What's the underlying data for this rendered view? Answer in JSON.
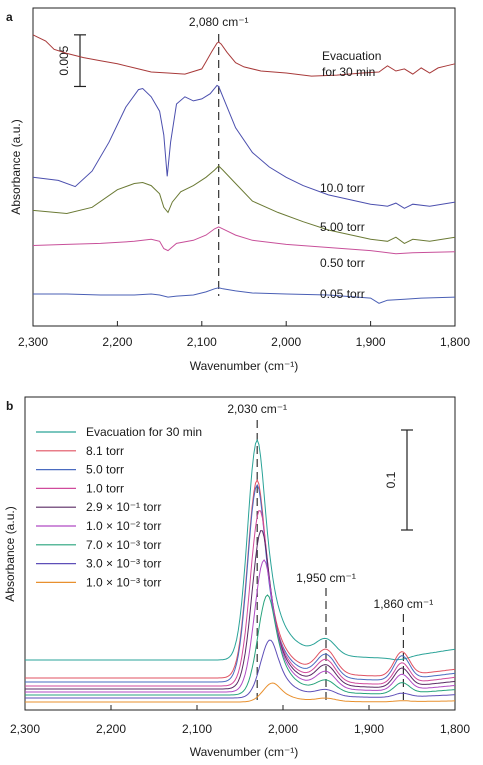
{
  "chart_data": [
    {
      "panel_label": "a",
      "type": "line",
      "xlabel": "Wavenumber (cm⁻¹)",
      "ylabel": "Absorbance (a.u.)",
      "xlim": [
        2300,
        1800
      ],
      "x_ticks": [
        2300,
        2200,
        2100,
        2000,
        1900,
        1800
      ],
      "x_tick_labels": [
        "2,300",
        "2,200",
        "2,100",
        "2,000",
        "1,900",
        "1,800"
      ],
      "ylim": [
        0,
        0.0308
      ],
      "grid": false,
      "legend": "inline labels at right",
      "scale_bar": {
        "label": "0.005",
        "value": 0.005,
        "y_from": 0.0232,
        "y_to": 0.0282
      },
      "annotations": [
        {
          "text": "2,080 cm⁻¹",
          "x": 2080,
          "dashed_line": true
        }
      ],
      "series": [
        {
          "name": "0.05 torr",
          "color": "#4a5fb5",
          "x": [
            2300,
            2260,
            2220,
            2180,
            2160,
            2150,
            2140,
            2130,
            2110,
            2095,
            2085,
            2080,
            2075,
            2060,
            2040,
            2000,
            1950,
            1900,
            1890,
            1880,
            1860,
            1840,
            1800
          ],
          "y": [
            0.0031,
            0.0031,
            0.003,
            0.003,
            0.0031,
            0.003,
            0.0028,
            0.0029,
            0.003,
            0.0033,
            0.0036,
            0.0037,
            0.0036,
            0.0034,
            0.0032,
            0.0031,
            0.003,
            0.0027,
            0.0022,
            0.0025,
            0.0026,
            0.0027,
            0.0028
          ]
        },
        {
          "name": "0.50 torr",
          "color": "#c8509a",
          "x": [
            2300,
            2260,
            2220,
            2180,
            2160,
            2150,
            2145,
            2140,
            2130,
            2110,
            2095,
            2085,
            2080,
            2075,
            2060,
            2040,
            2000,
            1950,
            1900,
            1870,
            1850,
            1800
          ],
          "y": [
            0.0078,
            0.0079,
            0.008,
            0.0082,
            0.0084,
            0.0082,
            0.0075,
            0.0073,
            0.008,
            0.0083,
            0.0088,
            0.0094,
            0.0096,
            0.0094,
            0.0088,
            0.0083,
            0.0079,
            0.0076,
            0.0073,
            0.007,
            0.0071,
            0.0072
          ]
        },
        {
          "name": "5.00 torr",
          "color": "#6b7a35",
          "x": [
            2300,
            2260,
            2230,
            2200,
            2180,
            2170,
            2160,
            2150,
            2145,
            2140,
            2135,
            2125,
            2110,
            2095,
            2085,
            2080,
            2075,
            2060,
            2040,
            2010,
            1980,
            1950,
            1900,
            1880,
            1870,
            1860,
            1850,
            1830,
            1800
          ],
          "y": [
            0.0112,
            0.0109,
            0.0115,
            0.0132,
            0.0138,
            0.0139,
            0.0136,
            0.0128,
            0.0115,
            0.011,
            0.012,
            0.013,
            0.0136,
            0.0144,
            0.0151,
            0.0155,
            0.0151,
            0.0138,
            0.0121,
            0.011,
            0.0101,
            0.0093,
            0.0084,
            0.0082,
            0.0086,
            0.008,
            0.0084,
            0.0082,
            0.0086
          ]
        },
        {
          "name": "10.0 torr",
          "color": "#4b4fae",
          "x": [
            2300,
            2270,
            2250,
            2230,
            2210,
            2190,
            2175,
            2170,
            2160,
            2150,
            2145,
            2141,
            2137,
            2130,
            2120,
            2110,
            2100,
            2090,
            2082,
            2080,
            2075,
            2060,
            2040,
            2020,
            2000,
            1980,
            1950,
            1900,
            1880,
            1870,
            1860,
            1850,
            1830,
            1800
          ],
          "y": [
            0.0144,
            0.0141,
            0.0135,
            0.015,
            0.0178,
            0.0212,
            0.0229,
            0.023,
            0.0222,
            0.0208,
            0.0185,
            0.0145,
            0.0178,
            0.0215,
            0.0222,
            0.0218,
            0.022,
            0.0225,
            0.0233,
            0.0232,
            0.0222,
            0.0192,
            0.0168,
            0.0154,
            0.0144,
            0.0136,
            0.0127,
            0.0118,
            0.0116,
            0.0119,
            0.0114,
            0.0118,
            0.0116,
            0.012
          ]
        },
        {
          "name": "Evacuation for 30 min",
          "color": "#a83a3a",
          "x": [
            2300,
            2295,
            2285,
            2275,
            2260,
            2240,
            2220,
            2200,
            2180,
            2160,
            2140,
            2120,
            2100,
            2095,
            2088,
            2082,
            2080,
            2077,
            2070,
            2060,
            2050,
            2030,
            2000,
            1970,
            1940,
            1910,
            1890,
            1880,
            1870,
            1860,
            1850,
            1840,
            1830,
            1820,
            1810,
            1800
          ],
          "y": [
            0.0282,
            0.028,
            0.0276,
            0.0268,
            0.0264,
            0.026,
            0.0257,
            0.0254,
            0.025,
            0.0246,
            0.0245,
            0.0244,
            0.0249,
            0.0256,
            0.0266,
            0.0274,
            0.0275,
            0.0273,
            0.0265,
            0.0255,
            0.0251,
            0.0247,
            0.0245,
            0.0242,
            0.0243,
            0.0245,
            0.0246,
            0.0252,
            0.0247,
            0.0249,
            0.0244,
            0.025,
            0.0245,
            0.025,
            0.0252,
            0.0254
          ]
        }
      ]
    },
    {
      "panel_label": "b",
      "type": "line",
      "xlabel": "Wavenumber (cm⁻¹)",
      "ylabel": "Absorbance (a.u.)",
      "xlim": [
        2300,
        1800
      ],
      "x_ticks": [
        2300,
        2200,
        2100,
        2000,
        1900,
        1800
      ],
      "x_tick_labels": [
        "2,300",
        "2,200",
        "2,100",
        "2,000",
        "1,900",
        "1,800"
      ],
      "ylim": [
        0,
        0.313
      ],
      "grid": false,
      "legend": "top-left",
      "scale_bar": {
        "label": "0.1",
        "value": 0.1,
        "y_from": 0.18,
        "y_to": 0.28
      },
      "annotations": [
        {
          "text": "2,030 cm⁻¹",
          "x": 2030,
          "dashed_line": true
        },
        {
          "text": "1,950 cm⁻¹",
          "x": 1950,
          "dashed_line": true
        },
        {
          "text": "1,860 cm⁻¹",
          "x": 1860,
          "dashed_line": true
        }
      ],
      "series": [
        {
          "name": "Evacuation for 30 min",
          "color": "#2aa398",
          "baseline": 0.05,
          "peak": 0.27,
          "peak_x": 2030,
          "shoulder_1950": 0.065,
          "shoulder_1860": 0.048,
          "tail_1800": 0.06
        },
        {
          "name": "8.1 torr",
          "color": "#e05262",
          "baseline": 0.032,
          "peak": 0.23,
          "peak_x": 2030,
          "shoulder_1950": 0.055,
          "shoulder_1860": 0.056,
          "tail_1800": 0.04
        },
        {
          "name": "5.0 torr",
          "color": "#4a6bc0",
          "baseline": 0.028,
          "peak": 0.225,
          "peak_x": 2030,
          "shoulder_1950": 0.05,
          "shoulder_1860": 0.052,
          "tail_1800": 0.036
        },
        {
          "name": "1.0 torr",
          "color": "#d04a9c",
          "baseline": 0.024,
          "peak": 0.2,
          "peak_x": 2027,
          "shoulder_1950": 0.045,
          "shoulder_1860": 0.045,
          "tail_1800": 0.032
        },
        {
          "name": "2.9 × 10⁻¹ torr",
          "color": "#5a2a64",
          "baseline": 0.021,
          "peak": 0.18,
          "peak_x": 2025,
          "shoulder_1950": 0.04,
          "shoulder_1860": 0.04,
          "tail_1800": 0.028
        },
        {
          "name": "1.0 × 10⁻² torr",
          "color": "#b04ac4",
          "baseline": 0.018,
          "peak": 0.15,
          "peak_x": 2022,
          "shoulder_1950": 0.034,
          "shoulder_1860": 0.034,
          "tail_1800": 0.024
        },
        {
          "name": "7.0 × 10⁻³ torr",
          "color": "#27a37c",
          "baseline": 0.015,
          "peak": 0.115,
          "peak_x": 2018,
          "shoulder_1950": 0.026,
          "shoulder_1860": 0.026,
          "tail_1800": 0.02
        },
        {
          "name": "3.0 × 10⁻³ torr",
          "color": "#5e4fb8",
          "baseline": 0.012,
          "peak": 0.07,
          "peak_x": 2015,
          "shoulder_1950": 0.018,
          "shoulder_1860": 0.016,
          "tail_1800": 0.015
        },
        {
          "name": "1.0 × 10⁻³ torr",
          "color": "#e8902e",
          "baseline": 0.008,
          "peak": 0.027,
          "peak_x": 2012,
          "shoulder_1950": 0.011,
          "shoulder_1860": 0.009,
          "tail_1800": 0.009
        }
      ]
    }
  ]
}
